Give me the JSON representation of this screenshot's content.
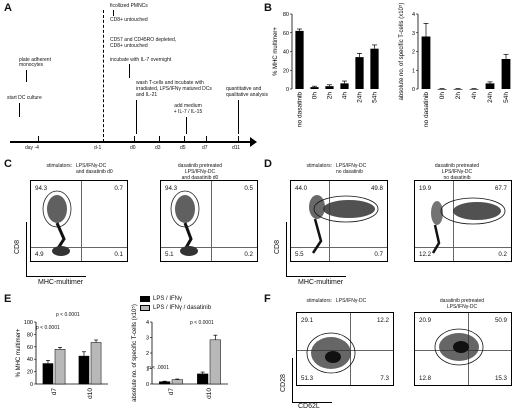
{
  "panels": {
    "A": {
      "letter": "A",
      "timeline_steps": [
        {
          "day": "day -4",
          "notes": [
            "plate adherent",
            "monocytes"
          ],
          "lower_notes": [
            "start DC culture"
          ]
        },
        {
          "day": "d-1",
          "notes": [
            "ficollized PMNCs",
            "CD8+ untouched",
            "CD57 and CD45RO depleted,",
            "CD8+ untouched",
            "incubate with IL-7 overnight"
          ]
        },
        {
          "day": "d0",
          "notes": [
            "wash T-cells and incubate with",
            "irradiated, LPS/IFNγ matured DCs",
            "and IL-21"
          ]
        },
        {
          "day": "d3",
          "notes": []
        },
        {
          "day": "d5",
          "notes": [
            "add medium",
            "+ IL-7 / IL-15"
          ]
        },
        {
          "day": "d7",
          "notes": []
        },
        {
          "day": "d11",
          "notes": [
            "quantitative and",
            "qualitative analysis"
          ]
        }
      ]
    },
    "B": {
      "letter": "B"
    },
    "C": {
      "letter": "C",
      "left_title": [
        "stimulators:",
        "LPS/IFNγ-DC",
        "and dasatinib d0"
      ],
      "right_title": [
        "dasatinib pretreated",
        "LPS/IFNγ-DC",
        "and dasatinib d0"
      ],
      "left_quadrants": [
        "94.3",
        "0.7",
        "4.9",
        "0.1"
      ],
      "right_quadrants": [
        "94.3",
        "0.5",
        "5.1",
        "0.2"
      ],
      "ylabel": "CD8",
      "xlabel": "MHC-multimer"
    },
    "D": {
      "letter": "D",
      "left_title": [
        "stimulators:",
        "LPS/IFNγ-DC",
        "no dasatinib"
      ],
      "right_title": [
        "dasatinib pretreated",
        "LPS/IFNγ-DC",
        "no dasatinib"
      ],
      "left_quadrants": [
        "44.0",
        "49.8",
        "5.5",
        "0.7"
      ],
      "right_quadrants": [
        "19.9",
        "67.7",
        "12.2",
        "0.2"
      ],
      "ylabel": "CD8",
      "xlabel": "MHC-multimer"
    },
    "E": {
      "letter": "E",
      "legend": [
        "LPS / IFNγ",
        "LPS / IFNγ / dasatinib"
      ],
      "left_pvalues": [
        "p < 0.0001",
        "p < 0.0001"
      ],
      "right_pvalues": [
        "p < .0001",
        "p < 0.0001"
      ]
    },
    "F": {
      "letter": "F",
      "left_title": [
        "stimulators:",
        "LPS/IFNγ-DC"
      ],
      "right_title": [
        "dasatinib pretreated",
        "LPS/IFNγ-DC"
      ],
      "left_quadrants": [
        "29.1",
        "12.2",
        "51.3",
        "7.3"
      ],
      "right_quadrants": [
        "20.9",
        "50.9",
        "12.8",
        "15.3"
      ],
      "ylabel": "CD28",
      "xlabel": "CD62L"
    }
  },
  "chart_data": [
    {
      "id": "B-left",
      "type": "bar",
      "categories": [
        "no dasatinib",
        "0h",
        "2h",
        "4h",
        "24h",
        "54h"
      ],
      "values": [
        62,
        2,
        3,
        6,
        34,
        43
      ],
      "errors": [
        2,
        1,
        1.5,
        2.5,
        4,
        4
      ],
      "ylabel": "% MHC multimer+",
      "ylim": [
        0,
        80
      ],
      "yticks": [
        "0",
        "20",
        "40",
        "60",
        "80"
      ],
      "colors": {
        "bars": "#000000"
      }
    },
    {
      "id": "B-right",
      "type": "bar",
      "categories": [
        "no dasatinib",
        "0h",
        "2h",
        "4h",
        "24h",
        "54h"
      ],
      "values": [
        2.8,
        0.0,
        0.0,
        0.0,
        0.3,
        1.6
      ],
      "errors": [
        0.7,
        0.02,
        0.02,
        0.02,
        0.08,
        0.25
      ],
      "ylabel": "absolute no. of specific T-cells (x10⁵)",
      "ylim": [
        0,
        4
      ],
      "yticks": [
        "0",
        "1",
        "2",
        "3",
        "4"
      ],
      "colors": {
        "bars": "#000000"
      }
    },
    {
      "id": "E-left",
      "type": "bar",
      "categories": [
        "d7",
        "d10"
      ],
      "series": [
        {
          "name": "LPS / IFNγ",
          "values": [
            33,
            45
          ],
          "errors": [
            5,
            7
          ]
        },
        {
          "name": "LPS / IFNγ / dasatinib",
          "values": [
            56,
            67
          ],
          "errors": [
            3,
            4
          ]
        }
      ],
      "ylabel": "% MHC multimer+",
      "ylim": [
        0,
        100
      ],
      "yticks": [
        "0",
        "20",
        "40",
        "60",
        "80",
        "100"
      ],
      "colors": {
        "series1": "#000000",
        "series2": "#b8b8b8"
      }
    },
    {
      "id": "E-right",
      "type": "bar",
      "categories": [
        "d7",
        "d10"
      ],
      "series": [
        {
          "name": "LPS / IFNγ",
          "values": [
            0.15,
            0.65
          ],
          "errors": [
            0.03,
            0.12
          ]
        },
        {
          "name": "LPS / IFNγ / dasatinib",
          "values": [
            0.28,
            2.85
          ],
          "errors": [
            0.04,
            0.3
          ]
        }
      ],
      "ylabel": "absolute no. of specific T-cells (x10⁵)",
      "ylim": [
        0,
        4
      ],
      "yticks": [
        "0",
        "1",
        "2",
        "3",
        "4"
      ],
      "colors": {
        "series1": "#000000",
        "series2": "#b8b8b8"
      }
    }
  ]
}
